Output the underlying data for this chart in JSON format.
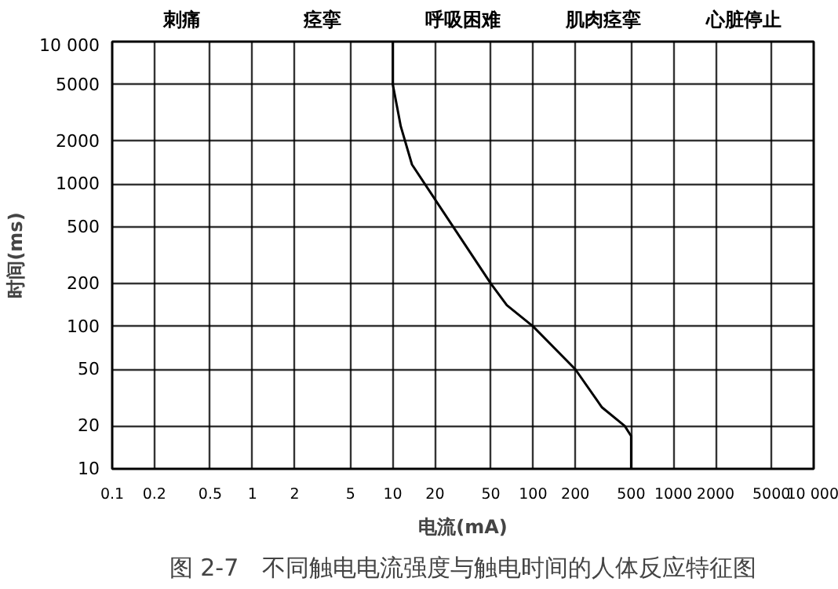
{
  "chart_data": {
    "type": "line",
    "title": "图 2-7　不同触电电流强度与触电时间的人体反应特征图",
    "xlabel": "电流(mA)",
    "ylabel": "时间(ms)",
    "log": "xy",
    "xlim": [
      0.1,
      10000
    ],
    "ylim": [
      10,
      10000
    ],
    "xticks": [
      0.1,
      0.2,
      0.5,
      1,
      2,
      5,
      10,
      20,
      50,
      100,
      200,
      500,
      1000,
      2000,
      5000,
      {
        "value": 10000,
        "label": "10 000"
      }
    ],
    "yticks": [
      10,
      20,
      50,
      100,
      200,
      500,
      1000,
      2000,
      5000,
      {
        "value": 10000,
        "label": "10 000"
      }
    ],
    "grid": true,
    "series": [
      {
        "color": "#000000",
        "x": [
          10,
          10,
          11.4,
          13.7,
          20,
          50,
          65,
          100,
          200,
          310,
          450,
          500,
          500
        ],
        "values": [
          10000,
          5000,
          2540,
          1370,
          780,
          200,
          141,
          100,
          50,
          27,
          20,
          17,
          10
        ]
      }
    ],
    "annotations": [
      "刺痛",
      "痉挛",
      "呼吸困难",
      "肌肉痉挛",
      "心脏停止"
    ]
  }
}
